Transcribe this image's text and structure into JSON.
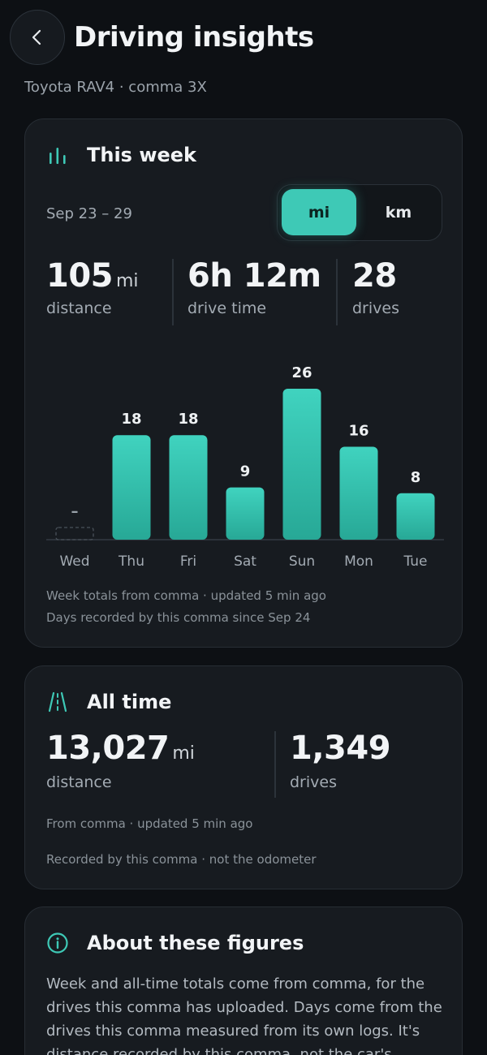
{
  "header": {
    "title": "Driving insights",
    "subtitle": "Toyota RAV4 · comma 3X",
    "back_icon": "chevron-left-icon"
  },
  "week": {
    "title": "This week",
    "icon": "bar-chart-icon",
    "date_range": "Sep 23 – 29",
    "units": {
      "active": "mi",
      "inactive": "km"
    },
    "stats": {
      "distance_value": "105",
      "distance_unit": "mi",
      "distance_label": "distance",
      "time_value": "6h 12m",
      "time_label": "drive time",
      "drives_value": "28",
      "drives_label": "drives"
    },
    "footnote_1": "Week totals from comma · updated 5 min ago",
    "footnote_2": "Days recorded by this comma since Sep 24"
  },
  "chart_data": {
    "type": "bar",
    "categories": [
      "Wed",
      "Thu",
      "Fri",
      "Sat",
      "Sun",
      "Mon",
      "Tue"
    ],
    "values": [
      null,
      18,
      18,
      9,
      26,
      16,
      8
    ],
    "value_labels": [
      "–",
      "18",
      "18",
      "9",
      "26",
      "16",
      "8"
    ],
    "ylim": [
      0,
      26
    ],
    "bar_color": "#3ec9b6",
    "missing_day_style": "dashed-outline"
  },
  "all_time": {
    "title": "All time",
    "icon": "road-icon",
    "distance_value": "13,027",
    "distance_unit": "mi",
    "distance_label": "distance",
    "drives_value": "1,349",
    "drives_label": "drives",
    "footnote_1": "From comma · updated 5 min ago",
    "footnote_2": "Recorded by this comma · not the odometer"
  },
  "about": {
    "title": "About these figures",
    "icon": "info-icon",
    "body": "Week and all-time totals come from comma, for the drives this comma has uploaded. Days come from the drives this comma measured from its own logs. It's distance recorded by this comma, not the car's odometer."
  },
  "colors": {
    "accent": "#3ec9b6",
    "background": "#0d1014",
    "card": "#171b20"
  }
}
